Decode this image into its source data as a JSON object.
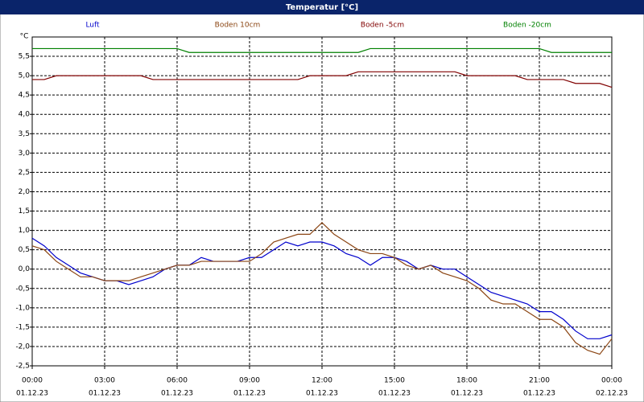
{
  "chart_data": {
    "type": "line",
    "title": "Temperatur [°C]",
    "y_unit": "°C",
    "x": [
      0,
      0.5,
      1,
      1.5,
      2,
      2.5,
      3,
      3.5,
      4,
      4.5,
      5,
      5.5,
      6,
      6.5,
      7,
      7.5,
      8,
      8.5,
      9,
      9.5,
      10,
      10.5,
      11,
      11.5,
      12,
      12.5,
      13,
      13.5,
      14,
      14.5,
      15,
      15.5,
      16,
      16.5,
      17,
      17.5,
      18,
      18.5,
      19,
      19.5,
      20,
      20.5,
      21,
      21.5,
      22,
      22.5,
      23,
      23.5,
      24
    ],
    "series": [
      {
        "name": "Luft",
        "color": "#0000cc",
        "values": [
          0.8,
          0.6,
          0.3,
          0.1,
          -0.1,
          -0.2,
          -0.3,
          -0.3,
          -0.4,
          -0.3,
          -0.2,
          0.0,
          0.1,
          0.1,
          0.3,
          0.2,
          0.2,
          0.2,
          0.3,
          0.3,
          0.5,
          0.7,
          0.6,
          0.7,
          0.7,
          0.6,
          0.4,
          0.3,
          0.1,
          0.3,
          0.3,
          0.2,
          0.0,
          0.1,
          0.0,
          0.0,
          -0.2,
          -0.4,
          -0.6,
          -0.7,
          -0.8,
          -0.9,
          -1.1,
          -1.1,
          -1.3,
          -1.6,
          -1.8,
          -1.8,
          -1.7
        ]
      },
      {
        "name": "Boden 10cm",
        "color": "#8b4513",
        "values": [
          0.6,
          0.5,
          0.2,
          0.0,
          -0.2,
          -0.2,
          -0.3,
          -0.3,
          -0.3,
          -0.2,
          -0.1,
          0.0,
          0.1,
          0.1,
          0.2,
          0.2,
          0.2,
          0.2,
          0.2,
          0.4,
          0.7,
          0.8,
          0.9,
          0.9,
          1.2,
          0.9,
          0.7,
          0.5,
          0.4,
          0.4,
          0.3,
          0.1,
          0.0,
          0.1,
          -0.1,
          -0.2,
          -0.3,
          -0.5,
          -0.8,
          -0.9,
          -0.9,
          -1.1,
          -1.3,
          -1.3,
          -1.5,
          -1.9,
          -2.1,
          -2.2,
          -1.8
        ]
      },
      {
        "name": "Boden -5cm",
        "color": "#800000",
        "values": [
          4.9,
          4.9,
          5.0,
          5.0,
          5.0,
          5.0,
          5.0,
          5.0,
          5.0,
          5.0,
          4.9,
          4.9,
          4.9,
          4.9,
          4.9,
          4.9,
          4.9,
          4.9,
          4.9,
          4.9,
          4.9,
          4.9,
          4.9,
          5.0,
          5.0,
          5.0,
          5.0,
          5.1,
          5.1,
          5.1,
          5.1,
          5.1,
          5.1,
          5.1,
          5.1,
          5.1,
          5.0,
          5.0,
          5.0,
          5.0,
          5.0,
          4.9,
          4.9,
          4.9,
          4.9,
          4.8,
          4.8,
          4.8,
          4.7
        ]
      },
      {
        "name": "Boden -20cm",
        "color": "#008000",
        "values": [
          5.7,
          5.7,
          5.7,
          5.7,
          5.7,
          5.7,
          5.7,
          5.7,
          5.7,
          5.7,
          5.7,
          5.7,
          5.7,
          5.6,
          5.6,
          5.6,
          5.6,
          5.6,
          5.6,
          5.6,
          5.6,
          5.6,
          5.6,
          5.6,
          5.6,
          5.6,
          5.6,
          5.6,
          5.7,
          5.7,
          5.7,
          5.7,
          5.7,
          5.7,
          5.7,
          5.7,
          5.7,
          5.7,
          5.7,
          5.7,
          5.7,
          5.7,
          5.7,
          5.6,
          5.6,
          5.6,
          5.6,
          5.6,
          5.6
        ]
      }
    ],
    "xlim": [
      0,
      24
    ],
    "xticks": [
      {
        "value": 0,
        "label": "00:00"
      },
      {
        "value": 3,
        "label": "03:00"
      },
      {
        "value": 6,
        "label": "06:00"
      },
      {
        "value": 9,
        "label": "09:00"
      },
      {
        "value": 12,
        "label": "12:00"
      },
      {
        "value": 15,
        "label": "15:00"
      },
      {
        "value": 18,
        "label": "18:00"
      },
      {
        "value": 21,
        "label": "21:00"
      },
      {
        "value": 24,
        "label": "00:00"
      }
    ],
    "xtick_dates": [
      "01.12.23",
      "01.12.23",
      "01.12.23",
      "01.12.23",
      "01.12.23",
      "01.12.23",
      "01.12.23",
      "01.12.23",
      "02.12.23"
    ],
    "ylim": [
      -2.5,
      6
    ],
    "yticks": [
      {
        "value": -2.5,
        "label": "-2,5"
      },
      {
        "value": -2,
        "label": "-2,0"
      },
      {
        "value": -1.5,
        "label": "-1,5"
      },
      {
        "value": -1,
        "label": "-1,0"
      },
      {
        "value": -0.5,
        "label": "-0,5"
      },
      {
        "value": 0,
        "label": "0,0"
      },
      {
        "value": 0.5,
        "label": "0,5"
      },
      {
        "value": 1,
        "label": "1,0"
      },
      {
        "value": 1.5,
        "label": "1,5"
      },
      {
        "value": 2,
        "label": "2,0"
      },
      {
        "value": 2.5,
        "label": "2,5"
      },
      {
        "value": 3,
        "label": "3,0"
      },
      {
        "value": 3.5,
        "label": "3,5"
      },
      {
        "value": 4,
        "label": "4,0"
      },
      {
        "value": 4.5,
        "label": "4,5"
      },
      {
        "value": 5,
        "label": "5,0"
      },
      {
        "value": 5.5,
        "label": "5,5"
      }
    ],
    "grid": true
  }
}
